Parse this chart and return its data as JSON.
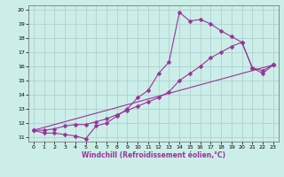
{
  "xlabel": "Windchill (Refroidissement éolien,°C)",
  "background_color": "#cceee8",
  "grid_color": "#aacccc",
  "line_color": "#993399",
  "xlim": [
    -0.5,
    23.5
  ],
  "ylim": [
    10.7,
    20.3
  ],
  "xticks": [
    0,
    1,
    2,
    3,
    4,
    5,
    6,
    7,
    8,
    9,
    10,
    11,
    12,
    13,
    14,
    15,
    16,
    17,
    18,
    19,
    20,
    21,
    22,
    23
  ],
  "yticks": [
    11,
    12,
    13,
    14,
    15,
    16,
    17,
    18,
    19,
    20
  ],
  "line1_x": [
    0,
    1,
    2,
    3,
    4,
    5,
    6,
    7,
    8,
    9,
    10,
    11,
    12,
    13,
    14,
    15,
    16,
    17,
    18,
    19,
    20,
    21,
    22,
    23
  ],
  "line1_y": [
    11.5,
    11.3,
    11.3,
    11.2,
    11.1,
    10.9,
    11.8,
    12.0,
    12.5,
    13.0,
    13.8,
    14.3,
    15.5,
    16.3,
    19.8,
    19.2,
    19.3,
    19.0,
    18.5,
    18.1,
    17.7,
    15.9,
    15.5,
    16.1
  ],
  "line2_x": [
    0,
    1,
    2,
    3,
    4,
    5,
    6,
    7,
    8,
    9,
    10,
    11,
    12,
    13,
    14,
    15,
    16,
    17,
    18,
    19,
    20,
    21,
    22,
    23
  ],
  "line2_y": [
    11.5,
    11.5,
    11.6,
    11.8,
    11.9,
    11.9,
    12.1,
    12.3,
    12.6,
    12.9,
    13.2,
    13.5,
    13.8,
    14.2,
    15.0,
    15.5,
    16.0,
    16.6,
    17.0,
    17.4,
    17.7,
    15.9,
    15.7,
    16.1
  ],
  "line3_x": [
    0,
    23
  ],
  "line3_y": [
    11.5,
    16.1
  ],
  "markersize": 2.5,
  "linewidth": 0.8
}
